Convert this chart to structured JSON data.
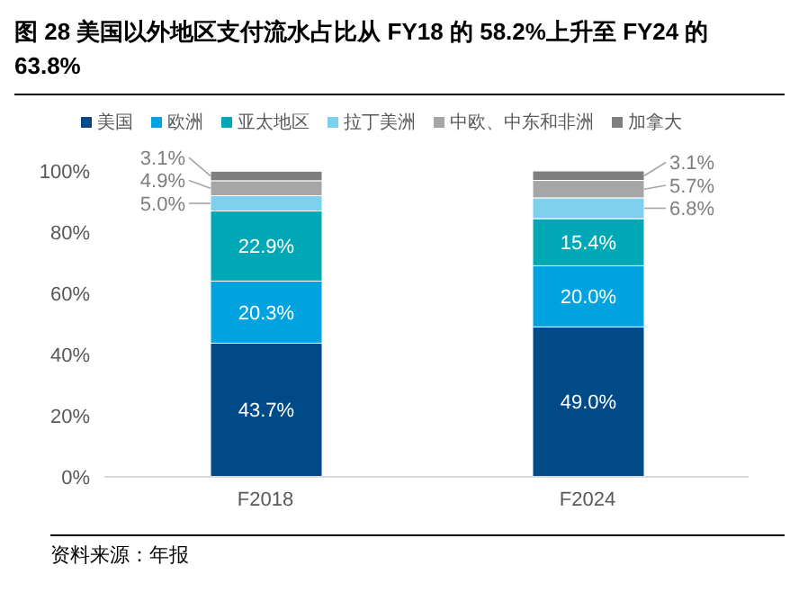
{
  "chart_data": {
    "type": "bar",
    "title": "图 28 美国以外地区支付流水占比从 FY18 的 58.2%上升至 FY24 的 63.8%",
    "categories": [
      "F2018",
      "F2024"
    ],
    "stacked": true,
    "series": [
      {
        "name": "美国",
        "color": "#004b87",
        "values": [
          43.7,
          49.0
        ],
        "value_labels": [
          "43.7%",
          "49.0%"
        ]
      },
      {
        "name": "欧洲",
        "color": "#00a3e0",
        "values": [
          20.3,
          20.0
        ],
        "value_labels": [
          "20.3%",
          "20.0%"
        ]
      },
      {
        "name": "亚太地区",
        "color": "#00a8b5",
        "values": [
          22.9,
          15.4
        ],
        "value_labels": [
          "22.9%",
          "15.4%"
        ]
      },
      {
        "name": "拉丁美洲",
        "color": "#7fd0ee",
        "values": [
          5.0,
          6.8
        ],
        "value_labels": [
          "5.0%",
          "6.8%"
        ]
      },
      {
        "name": "中欧、中东和非洲",
        "color": "#a6a6a6",
        "values": [
          4.9,
          5.7
        ],
        "value_labels": [
          "4.9%",
          "5.7%"
        ]
      },
      {
        "name": "加拿大",
        "color": "#7f7f7f",
        "values": [
          3.1,
          3.1
        ],
        "value_labels": [
          "3.1%",
          "3.1%"
        ]
      }
    ],
    "ylim": [
      0,
      100
    ],
    "yticks": [
      {
        "value": 0,
        "label": "0%"
      },
      {
        "value": 20,
        "label": "20%"
      },
      {
        "value": 40,
        "label": "40%"
      },
      {
        "value": 60,
        "label": "60%"
      },
      {
        "value": 80,
        "label": "80%"
      },
      {
        "value": 100,
        "label": "100%"
      }
    ],
    "grid": false,
    "legend": "top",
    "annotations": [
      "资料来源：年报"
    ]
  }
}
